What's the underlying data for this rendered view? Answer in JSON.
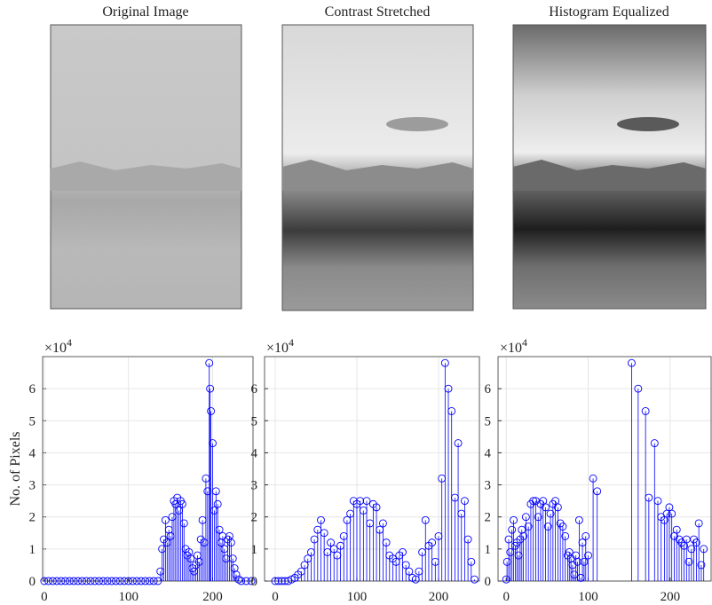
{
  "images": [
    {
      "title": "Original Image"
    },
    {
      "title": "Contrast Stretched"
    },
    {
      "title": "Histogram Equalized"
    }
  ],
  "chart_data": [
    {
      "type": "stem",
      "ylabel": "No. of Pixels",
      "multiplier": {
        "base": "×10",
        "exponent": "4"
      },
      "color": "#0000ff",
      "grid": true,
      "xlim": [
        -2,
        248
      ],
      "xticks": [
        0,
        100,
        200
      ],
      "ylim": [
        0,
        7
      ],
      "yticks": [
        0,
        1,
        2,
        3,
        4,
        5,
        6
      ],
      "x": [
        0,
        5,
        10,
        15,
        20,
        25,
        30,
        35,
        40,
        45,
        50,
        55,
        60,
        65,
        70,
        75,
        80,
        85,
        90,
        95,
        100,
        105,
        110,
        115,
        120,
        125,
        130,
        135,
        138,
        140,
        142,
        144,
        146,
        148,
        150,
        152,
        154,
        156,
        158,
        160,
        162,
        164,
        166,
        168,
        170,
        172,
        174,
        176,
        178,
        180,
        182,
        184,
        186,
        188,
        190,
        192,
        194,
        196,
        197,
        198,
        200,
        202,
        204,
        206,
        208,
        210,
        212,
        214,
        216,
        218,
        220,
        222,
        224,
        226,
        228,
        231,
        234,
        240,
        246
      ],
      "values": [
        0,
        0,
        0,
        0,
        0,
        0,
        0,
        0,
        0,
        0,
        0,
        0,
        0,
        0,
        0,
        0,
        0,
        0,
        0,
        0,
        0,
        0,
        0,
        0,
        0,
        0,
        0,
        0,
        0.3,
        1.0,
        1.3,
        1.9,
        1.2,
        1.6,
        1.4,
        2.0,
        2.5,
        2.4,
        2.6,
        2.2,
        2.5,
        2.4,
        1.8,
        1.0,
        0.8,
        0.9,
        0.7,
        0.4,
        0.3,
        0.5,
        0.8,
        0.6,
        1.3,
        1.9,
        1.2,
        3.2,
        2.8,
        6.8,
        6.0,
        5.3,
        4.3,
        2.2,
        2.8,
        2.4,
        1.6,
        1.2,
        1.4,
        1.0,
        0.7,
        1.3,
        1.4,
        1.2,
        0.7,
        0.4,
        0.2,
        0.05,
        0,
        0,
        0
      ]
    },
    {
      "type": "stem",
      "multiplier": {
        "base": "×10",
        "exponent": "4"
      },
      "color": "#0000ff",
      "grid": true,
      "xlim": [
        -13,
        250
      ],
      "xticks": [
        0,
        100,
        200
      ],
      "ylim": [
        0,
        7
      ],
      "yticks": [
        0,
        1,
        2,
        3,
        4,
        5,
        6
      ],
      "x": [
        0,
        4,
        8,
        12,
        16,
        20,
        24,
        28,
        32,
        36,
        40,
        44,
        48,
        52,
        56,
        60,
        64,
        68,
        72,
        76,
        80,
        84,
        88,
        92,
        96,
        100,
        104,
        108,
        112,
        116,
        120,
        124,
        128,
        132,
        136,
        140,
        144,
        148,
        152,
        156,
        160,
        164,
        168,
        172,
        176,
        180,
        184,
        188,
        192,
        196,
        200,
        204,
        208,
        212,
        216,
        220,
        224,
        228,
        232,
        236,
        240,
        244
      ],
      "values": [
        0,
        0,
        0,
        0,
        0,
        0.05,
        0.1,
        0.2,
        0.3,
        0.5,
        0.7,
        0.9,
        1.3,
        1.6,
        1.9,
        1.5,
        0.9,
        1.2,
        1.0,
        0.8,
        1.1,
        1.4,
        1.9,
        2.1,
        2.5,
        2.4,
        2.5,
        2.2,
        2.5,
        1.8,
        2.4,
        2.3,
        1.6,
        1.8,
        1.2,
        0.8,
        0.7,
        0.6,
        0.8,
        0.9,
        0.5,
        0.3,
        0.1,
        0.05,
        0.3,
        0.9,
        1.9,
        1.1,
        1.2,
        0.6,
        1.4,
        3.2,
        6.8,
        6.0,
        5.3,
        2.6,
        4.3,
        2.1,
        2.5,
        1.3,
        0.6,
        0.05
      ]
    },
    {
      "type": "stem",
      "multiplier": {
        "base": "×10",
        "exponent": "4"
      },
      "color": "#0000ff",
      "grid": true,
      "xlim": [
        -10,
        250
      ],
      "xticks": [
        0,
        100,
        200
      ],
      "ylim": [
        0,
        7
      ],
      "yticks": [
        0,
        1,
        2,
        3,
        4,
        5,
        6
      ],
      "x": [
        0,
        1,
        3,
        5,
        7,
        9,
        11,
        13,
        15,
        17,
        19,
        21,
        24,
        27,
        30,
        33,
        36,
        39,
        42,
        45,
        48,
        51,
        54,
        57,
        60,
        63,
        66,
        69,
        72,
        75,
        77,
        79,
        81,
        83,
        85,
        87,
        89,
        91,
        93,
        95,
        97,
        100,
        106,
        111,
        153,
        161,
        170,
        174,
        181,
        185,
        189,
        193,
        196,
        199,
        202,
        205,
        208,
        211,
        214,
        217,
        220,
        223,
        226,
        229,
        232,
        235,
        238,
        241
      ],
      "values": [
        0.05,
        0.6,
        1.3,
        0.9,
        1.6,
        1.9,
        1.1,
        1.2,
        0.8,
        1.3,
        1.6,
        1.4,
        2.0,
        1.7,
        2.4,
        2.5,
        2.5,
        2.0,
        2.4,
        2.5,
        2.3,
        1.7,
        2.1,
        2.4,
        2.5,
        2.3,
        1.8,
        1.7,
        1.4,
        0.8,
        0.9,
        0.7,
        0.5,
        0.2,
        0.8,
        0.6,
        1.9,
        0.1,
        1.2,
        0.6,
        1.4,
        0.8,
        3.2,
        2.8,
        6.8,
        6.0,
        5.3,
        2.6,
        4.3,
        2.5,
        2.0,
        1.9,
        2.1,
        2.3,
        2.1,
        1.4,
        1.6,
        1.3,
        1.2,
        1.1,
        1.3,
        0.6,
        1.0,
        1.3,
        1.2,
        1.8,
        0.5,
        1.0
      ]
    }
  ]
}
